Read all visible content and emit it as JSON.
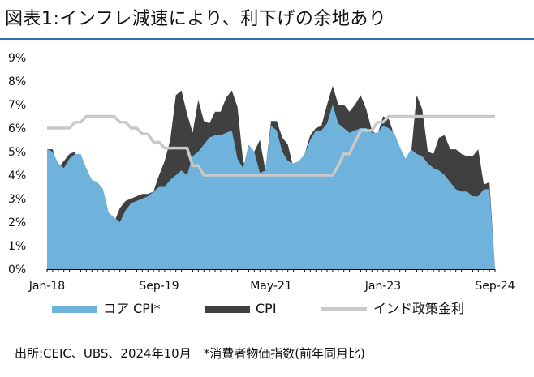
{
  "title": "図表1:インフレ減速により、利下げの余地あり",
  "source": "出所:CEIC、UBS、2024年10月　*消費者物価指数(前年同月比)",
  "chart_data": {
    "type": "area",
    "y_unit": "%",
    "ylim": [
      0,
      9
    ],
    "y_ticks": [
      "0%",
      "1%",
      "2%",
      "3%",
      "4%",
      "5%",
      "6%",
      "7%",
      "8%",
      "9%"
    ],
    "x_ticks": [
      "Jan-18",
      "Sep-19",
      "May-21",
      "Jan-23",
      "Sep-24"
    ],
    "grid": false,
    "legend_position": "bottom",
    "x": [
      "2018-01",
      "2018-02",
      "2018-03",
      "2018-04",
      "2018-05",
      "2018-06",
      "2018-07",
      "2018-08",
      "2018-09",
      "2018-10",
      "2018-11",
      "2018-12",
      "2019-01",
      "2019-02",
      "2019-03",
      "2019-04",
      "2019-05",
      "2019-06",
      "2019-07",
      "2019-08",
      "2019-09",
      "2019-10",
      "2019-11",
      "2019-12",
      "2020-01",
      "2020-02",
      "2020-03",
      "2020-04",
      "2020-05",
      "2020-06",
      "2020-07",
      "2020-08",
      "2020-09",
      "2020-10",
      "2020-11",
      "2020-12",
      "2021-01",
      "2021-02",
      "2021-03",
      "2021-04",
      "2021-05",
      "2021-06",
      "2021-07",
      "2021-08",
      "2021-09",
      "2021-10",
      "2021-11",
      "2021-12",
      "2022-01",
      "2022-02",
      "2022-03",
      "2022-04",
      "2022-05",
      "2022-06",
      "2022-07",
      "2022-08",
      "2022-09",
      "2022-10",
      "2022-11",
      "2022-12",
      "2023-01",
      "2023-02",
      "2023-03",
      "2023-04",
      "2023-05",
      "2023-06",
      "2023-07",
      "2023-08",
      "2023-09",
      "2023-10",
      "2023-11",
      "2023-12",
      "2024-01",
      "2024-02",
      "2024-03",
      "2024-04",
      "2024-05",
      "2024-06",
      "2024-07",
      "2024-08",
      "2024-09"
    ],
    "series": [
      {
        "name": "CPI",
        "color": "#404040",
        "style": "area",
        "values": [
          5.1,
          5.1,
          4.3,
          4.6,
          4.9,
          5.0,
          4.2,
          3.7,
          3.7,
          3.4,
          2.3,
          2.1,
          2.0,
          2.6,
          2.9,
          3.0,
          3.1,
          3.2,
          3.2,
          3.3,
          4.0,
          4.6,
          5.5,
          7.4,
          7.6,
          6.6,
          5.8,
          7.2,
          6.3,
          6.2,
          6.7,
          6.7,
          7.3,
          7.6,
          6.9,
          4.6,
          4.1,
          5.0,
          5.5,
          4.2,
          6.3,
          6.3,
          5.6,
          5.3,
          4.3,
          4.5,
          4.9,
          5.7,
          6.0,
          6.1,
          7.0,
          7.8,
          7.0,
          7.0,
          6.7,
          7.0,
          7.4,
          6.8,
          5.9,
          5.7,
          6.5,
          6.4,
          5.7,
          4.7,
          4.3,
          4.9,
          7.4,
          6.8,
          5.0,
          4.9,
          5.6,
          5.7,
          5.1,
          5.1,
          4.9,
          4.8,
          4.8,
          5.1,
          3.6,
          3.7,
          0.0
        ]
      },
      {
        "name": "コア CPI*",
        "color": "#6fb3dd",
        "style": "area",
        "values": [
          5.1,
          5.0,
          4.5,
          4.3,
          4.7,
          4.9,
          4.9,
          4.3,
          3.8,
          3.7,
          3.4,
          2.4,
          2.2,
          2.0,
          2.5,
          2.8,
          2.9,
          3.0,
          3.1,
          3.3,
          3.5,
          3.5,
          3.8,
          4.0,
          4.2,
          4.0,
          4.8,
          5.0,
          5.3,
          5.6,
          5.7,
          5.7,
          5.8,
          5.9,
          4.7,
          4.3,
          5.3,
          5.0,
          4.1,
          4.2,
          6.1,
          5.9,
          5.0,
          4.6,
          4.5,
          4.6,
          4.9,
          5.5,
          5.9,
          5.9,
          6.2,
          7.0,
          6.2,
          6.0,
          5.8,
          5.9,
          6.0,
          6.0,
          5.8,
          5.8,
          6.1,
          6.0,
          5.8,
          5.2,
          4.7,
          5.1,
          4.9,
          4.8,
          4.5,
          4.3,
          4.2,
          4.0,
          3.7,
          3.4,
          3.3,
          3.3,
          3.1,
          3.1,
          3.4,
          3.4,
          0.0
        ]
      },
      {
        "name": "インド政策金利",
        "color": "#c9c9c9",
        "style": "line",
        "values": [
          6.0,
          6.0,
          6.0,
          6.0,
          6.0,
          6.25,
          6.25,
          6.5,
          6.5,
          6.5,
          6.5,
          6.5,
          6.5,
          6.25,
          6.25,
          6.0,
          6.0,
          5.75,
          5.75,
          5.4,
          5.4,
          5.15,
          5.15,
          5.15,
          5.15,
          5.15,
          4.4,
          4.4,
          4.0,
          4.0,
          4.0,
          4.0,
          4.0,
          4.0,
          4.0,
          4.0,
          4.0,
          4.0,
          4.0,
          4.0,
          4.0,
          4.0,
          4.0,
          4.0,
          4.0,
          4.0,
          4.0,
          4.0,
          4.0,
          4.0,
          4.0,
          4.0,
          4.4,
          4.9,
          4.9,
          5.4,
          5.9,
          5.9,
          5.9,
          6.25,
          6.25,
          6.5,
          6.5,
          6.5,
          6.5,
          6.5,
          6.5,
          6.5,
          6.5,
          6.5,
          6.5,
          6.5,
          6.5,
          6.5,
          6.5,
          6.5,
          6.5,
          6.5,
          6.5,
          6.5,
          6.5
        ]
      }
    ]
  }
}
